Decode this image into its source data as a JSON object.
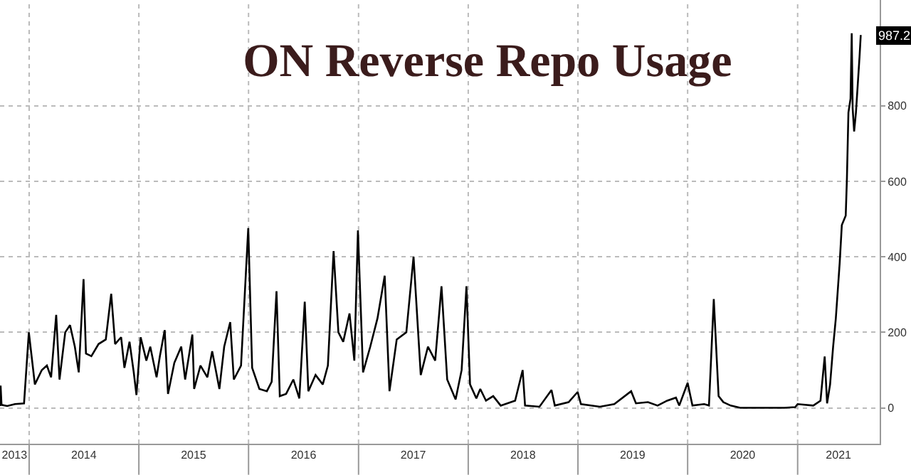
{
  "chart_data": {
    "type": "line",
    "title": "ON Reverse Repo Usage",
    "x": [
      "2013-09-26",
      "2013-09-28",
      "2013-10-01",
      "2013-10-20",
      "2013-11-15",
      "2013-12-15",
      "2013-12-31",
      "2014-01-20",
      "2014-02-12",
      "2014-03-01",
      "2014-03-15",
      "2014-04-01",
      "2014-04-12",
      "2014-05-01",
      "2014-05-17",
      "2014-06-02",
      "2014-06-15",
      "2014-07-01",
      "2014-07-09",
      "2014-07-27",
      "2014-08-20",
      "2014-09-13",
      "2014-10-01",
      "2014-10-14",
      "2014-11-03",
      "2014-11-14",
      "2014-12-01",
      "2014-12-15",
      "2014-12-24",
      "2015-01-07",
      "2015-01-26",
      "2015-02-08",
      "2015-03-01",
      "2015-03-12",
      "2015-03-28",
      "2015-04-08",
      "2015-04-29",
      "2015-05-22",
      "2015-06-04",
      "2015-06-28",
      "2015-07-04",
      "2015-07-25",
      "2015-08-17",
      "2015-09-02",
      "2015-09-26",
      "2015-10-12",
      "2015-11-01",
      "2015-11-13",
      "2015-12-07",
      "2015-12-31",
      "2016-01-13",
      "2016-02-06",
      "2016-03-02",
      "2016-03-18",
      "2016-04-03",
      "2016-04-14",
      "2016-05-05",
      "2016-05-29",
      "2016-06-18",
      "2016-07-06",
      "2016-07-18",
      "2016-08-11",
      "2016-09-04",
      "2016-09-21",
      "2016-10-10",
      "2016-10-26",
      "2016-11-11",
      "2016-12-02",
      "2016-12-18",
      "2016-12-30",
      "2017-01-16",
      "2017-02-09",
      "2017-03-05",
      "2017-03-29",
      "2017-04-14",
      "2017-05-08",
      "2017-06-09",
      "2017-07-03",
      "2017-07-27",
      "2017-08-20",
      "2017-09-13",
      "2017-10-04",
      "2017-10-23",
      "2017-11-20",
      "2017-12-10",
      "2017-12-26",
      "2018-01-07",
      "2018-01-28",
      "2018-02-10",
      "2018-03-01",
      "2018-03-25",
      "2018-04-19",
      "2018-06-06",
      "2018-07-01",
      "2018-07-09",
      "2018-08-26",
      "2018-10-05",
      "2018-10-16",
      "2018-12-01",
      "2018-12-31",
      "2019-01-11",
      "2019-03-15",
      "2019-05-02",
      "2019-06-27",
      "2019-07-13",
      "2019-08-22",
      "2019-09-23",
      "2019-10-25",
      "2019-11-23",
      "2019-12-04",
      "2020-01-01",
      "2020-01-17",
      "2020-02-25",
      "2020-03-12",
      "2020-03-28",
      "2020-04-13",
      "2020-04-29",
      "2020-05-23",
      "2020-06-24",
      "2020-11-18",
      "2020-12-24",
      "2021-01-01",
      "2021-02-22",
      "2021-03-18",
      "2021-04-01",
      "2021-04-09",
      "2021-04-19",
      "2021-04-29",
      "2021-05-08",
      "2021-05-21",
      "2021-05-28",
      "2021-06-10",
      "2021-06-14",
      "2021-06-19",
      "2021-06-26",
      "2021-06-30",
      "2021-07-03",
      "2021-07-08",
      "2021-07-14",
      "2021-07-20",
      "2021-07-26",
      "2021-07-30"
    ],
    "series": [
      {
        "color": "#000000",
        "values": [
          5,
          59,
          8,
          5,
          10,
          12,
          200,
          62,
          100,
          112,
          81,
          246,
          75,
          200,
          219,
          162,
          94,
          341,
          144,
          137,
          169,
          181,
          302,
          169,
          187,
          106,
          175,
          94,
          34,
          187,
          125,
          162,
          81,
          137,
          206,
          37,
          119,
          162,
          75,
          194,
          50,
          112,
          81,
          150,
          50,
          162,
          227,
          75,
          112,
          476,
          106,
          50,
          44,
          69,
          309,
          31,
          37,
          75,
          25,
          281,
          44,
          87,
          62,
          112,
          415,
          200,
          175,
          250,
          125,
          470,
          94,
          162,
          237,
          350,
          44,
          181,
          200,
          400,
          87,
          162,
          125,
          322,
          75,
          22,
          100,
          322,
          62,
          25,
          50,
          19,
          31,
          6,
          19,
          100,
          6,
          3,
          47,
          6,
          15,
          42,
          10,
          3,
          10,
          44,
          12,
          15,
          6,
          19,
          27,
          6,
          66,
          6,
          10,
          6,
          288,
          31,
          15,
          6,
          0,
          0,
          2,
          10,
          6,
          19,
          136,
          12,
          62,
          161,
          236,
          385,
          484,
          509,
          608,
          782,
          819,
          992,
          794,
          732,
          782,
          856,
          930,
          987.2
        ]
      }
    ],
    "annotations": [
      {
        "text": "987.2",
        "x": "2021-07-30",
        "y": 987.2
      }
    ],
    "xlim": [
      "2013-09-26",
      "2021-10-01"
    ],
    "xticks": [
      {
        "value": "2014-01-01",
        "label": null
      },
      {
        "value": "2015-01-01",
        "label": null
      },
      {
        "value": "2016-01-01",
        "label": null
      },
      {
        "value": "2017-01-01",
        "label": null
      },
      {
        "value": "2018-01-01",
        "label": null
      },
      {
        "value": "2019-01-01",
        "label": null
      },
      {
        "value": "2020-01-01",
        "label": null
      },
      {
        "value": "2021-01-01",
        "label": null
      },
      {
        "value": "2013-11-13",
        "label": "2013"
      },
      {
        "value": "2014-07-02",
        "label": "2014"
      },
      {
        "value": "2015-07-02",
        "label": "2015"
      },
      {
        "value": "2016-07-02",
        "label": "2016"
      },
      {
        "value": "2017-07-02",
        "label": "2017"
      },
      {
        "value": "2018-07-02",
        "label": "2018"
      },
      {
        "value": "2019-07-02",
        "label": "2019"
      },
      {
        "value": "2020-07-02",
        "label": "2020"
      },
      {
        "value": "2021-05-17",
        "label": "2021"
      }
    ],
    "ylim": [
      -95,
      1080
    ],
    "yticks": [
      0,
      200,
      400,
      600,
      800
    ],
    "grid": true,
    "line_style": "solid",
    "marker": "none"
  }
}
